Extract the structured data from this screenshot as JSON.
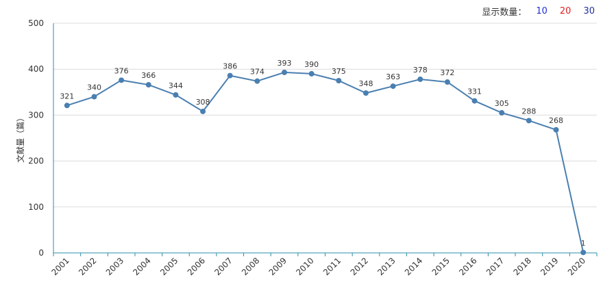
{
  "controls": {
    "count_label": "显示数量：",
    "options": [
      {
        "label": "10",
        "color": "#1e2fd6"
      },
      {
        "label": "20",
        "color": "#e01e1e"
      },
      {
        "label": "30",
        "color": "#1e2fa0"
      }
    ]
  },
  "chart_data": {
    "type": "line",
    "title": "",
    "xlabel": "",
    "ylabel": "文献量（篇）",
    "ylim": [
      0,
      500
    ],
    "yticks": [
      0,
      100,
      200,
      300,
      400,
      500
    ],
    "grid": true,
    "categories": [
      "2001",
      "2002",
      "2003",
      "2004",
      "2005",
      "2006",
      "2007",
      "2008",
      "2009",
      "2010",
      "2011",
      "2012",
      "2013",
      "2014",
      "2015",
      "2016",
      "2017",
      "2018",
      "2019",
      "2020"
    ],
    "series": [
      {
        "values": [
          321,
          340,
          376,
          366,
          344,
          308,
          386,
          374,
          393,
          390,
          375,
          348,
          363,
          378,
          372,
          331,
          305,
          288,
          268,
          1
        ],
        "color": "#4a7fb0"
      }
    ]
  }
}
